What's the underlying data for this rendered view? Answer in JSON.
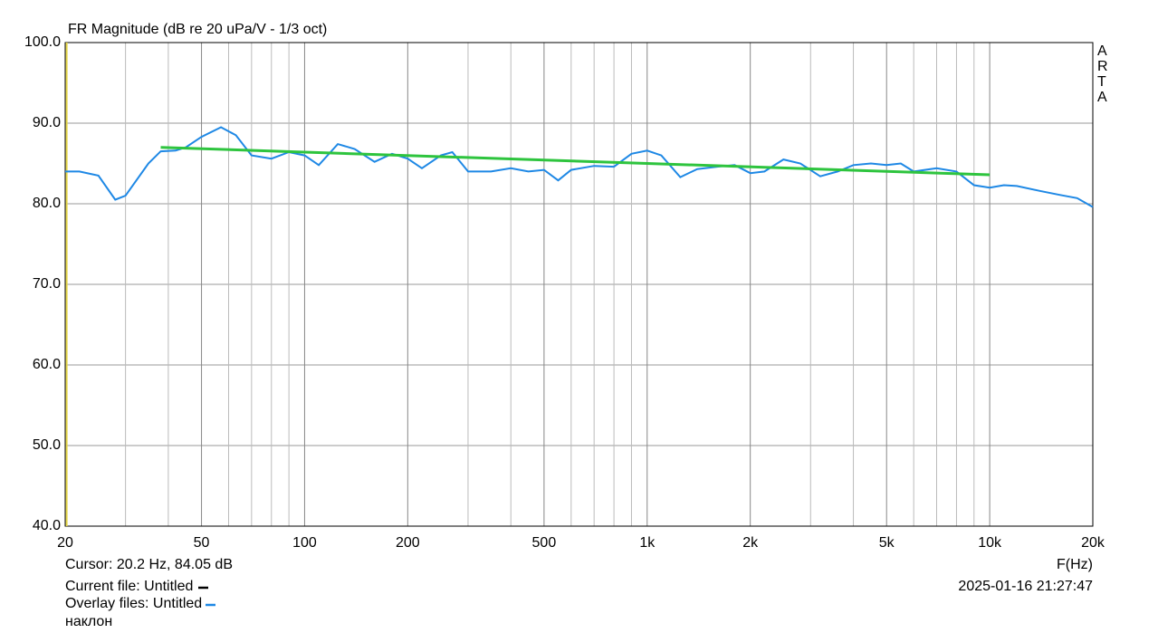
{
  "chart_data": {
    "type": "line",
    "title": "FR Magnitude (dB re 20 uPa/V - 1/3 oct)",
    "x_label": "F(Hz)",
    "log_x": true,
    "grid": true,
    "xlim": [
      20,
      20000
    ],
    "ylim": [
      40,
      100
    ],
    "xticks": [
      20,
      50,
      100,
      200,
      500,
      {
        "value": 1000,
        "label": "1k"
      },
      {
        "value": 2000,
        "label": "2k"
      },
      {
        "value": 5000,
        "label": "5k"
      },
      {
        "value": 10000,
        "label": "10k"
      },
      {
        "value": 20000,
        "label": "20k"
      }
    ],
    "x_minor_grid": [
      30,
      40,
      60,
      70,
      80,
      90,
      300,
      400,
      600,
      700,
      800,
      900,
      3000,
      4000,
      6000,
      7000,
      8000,
      9000
    ],
    "yticks": [
      {
        "value": 40,
        "label": "40.0"
      },
      {
        "value": 50,
        "label": "50.0"
      },
      {
        "value": 60,
        "label": "60.0"
      },
      {
        "value": 70,
        "label": "70.0"
      },
      {
        "value": 80,
        "label": "80.0"
      },
      {
        "value": 90,
        "label": "90.0"
      },
      {
        "value": 100,
        "label": "100.0"
      }
    ],
    "cursor": {
      "x": 20.2,
      "color": "#e6d84a",
      "label": "Cursor: 20.2 Hz, 84.05 dB"
    },
    "watermark": "ARTA",
    "current_file": {
      "label": "Current file: Untitled",
      "color": "#000000"
    },
    "timestamp": "2025-01-16  21:27:47",
    "series": [
      {
        "name": "Overlay files: Untitled",
        "color": "#1e88e5",
        "x": [
          20,
          22,
          25,
          28,
          30,
          35,
          38,
          42,
          45,
          50,
          57,
          63,
          70,
          80,
          90,
          100,
          110,
          125,
          140,
          160,
          180,
          200,
          220,
          250,
          270,
          300,
          350,
          400,
          450,
          500,
          550,
          600,
          700,
          800,
          900,
          1000,
          1100,
          1250,
          1400,
          1600,
          1800,
          2000,
          2200,
          2500,
          2800,
          3200,
          3600,
          4000,
          4500,
          5000,
          5500,
          6000,
          7000,
          8000,
          9000,
          10000,
          11000,
          12000,
          14000,
          16000,
          18000,
          20000
        ],
        "values": [
          84.0,
          84.0,
          83.5,
          80.5,
          81.0,
          85.0,
          86.5,
          86.6,
          87.0,
          88.3,
          89.5,
          88.5,
          86.0,
          85.6,
          86.4,
          86.0,
          84.8,
          87.4,
          86.8,
          85.2,
          86.2,
          85.6,
          84.4,
          86.0,
          86.4,
          84.0,
          84.0,
          84.4,
          84.0,
          84.2,
          82.9,
          84.2,
          84.7,
          84.6,
          86.2,
          86.6,
          86.0,
          83.3,
          84.3,
          84.6,
          84.8,
          83.8,
          84.0,
          85.5,
          85.0,
          83.4,
          84.0,
          84.8,
          85.0,
          84.8,
          85.0,
          84.0,
          84.4,
          84.0,
          82.3,
          82.0,
          82.3,
          82.2,
          81.6,
          81.1,
          80.7,
          79.6
        ]
      },
      {
        "name": "наклон",
        "color": "#2ec43e",
        "x": [
          38,
          100,
          1000,
          10000
        ],
        "values": [
          87.0,
          86.4,
          85.0,
          83.6
        ]
      }
    ]
  }
}
